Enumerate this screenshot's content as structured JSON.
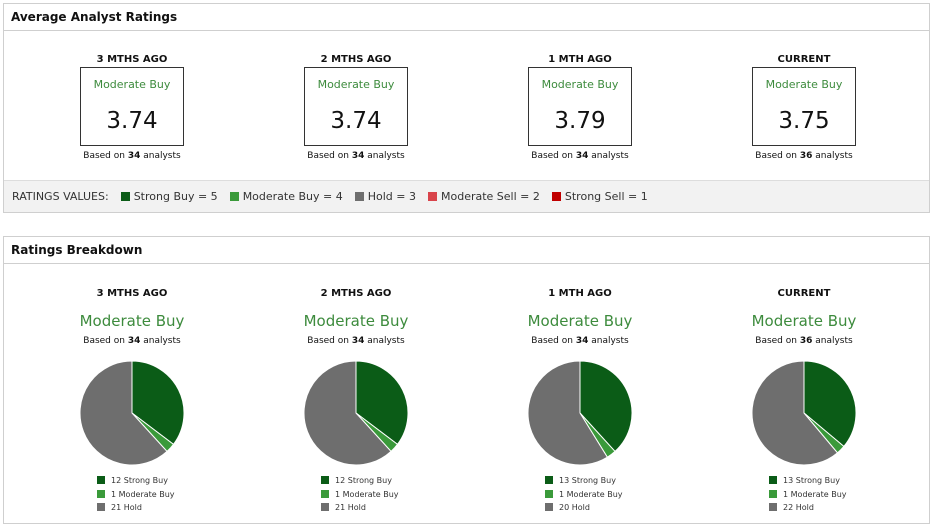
{
  "ratings_panel": {
    "title": "Average Analyst Ratings",
    "periods": [
      {
        "label": "3 MTHS AGO",
        "rating": "Moderate Buy",
        "score": 3.74,
        "based_prefix": "Based on",
        "analysts": 34,
        "based_suffix": "analysts"
      },
      {
        "label": "2 MTHS AGO",
        "rating": "Moderate Buy",
        "score": 3.74,
        "based_prefix": "Based on",
        "analysts": 34,
        "based_suffix": "analysts"
      },
      {
        "label": "1 MTH AGO",
        "rating": "Moderate Buy",
        "score": 3.79,
        "based_prefix": "Based on",
        "analysts": 34,
        "based_suffix": "analysts"
      },
      {
        "label": "CURRENT",
        "rating": "Moderate Buy",
        "score": 3.75,
        "based_prefix": "Based on",
        "analysts": 36,
        "based_suffix": "analysts"
      }
    ],
    "legend_label": "RATINGS VALUES:",
    "legend": [
      {
        "text": "Strong Buy = 5",
        "color": "#0b5c17"
      },
      {
        "text": "Moderate Buy = 4",
        "color": "#3a9a3a"
      },
      {
        "text": "Hold = 3",
        "color": "#6e6e6e"
      },
      {
        "text": "Moderate Sell = 2",
        "color": "#d9444b"
      },
      {
        "text": "Strong Sell = 1",
        "color": "#c00000"
      }
    ]
  },
  "breakdown_title": "Ratings Breakdown",
  "chart_data": [
    {
      "type": "pie",
      "title": "3 MTHS AGO",
      "subtitle": "Moderate Buy",
      "based_prefix": "Based on",
      "analysts": 34,
      "based_suffix": "analysts",
      "categories": [
        "Strong Buy",
        "Moderate Buy",
        "Hold"
      ],
      "values": [
        12,
        1,
        21
      ],
      "colors": [
        "#0b5c17",
        "#3a9a3a",
        "#6e6e6e"
      ]
    },
    {
      "type": "pie",
      "title": "2 MTHS AGO",
      "subtitle": "Moderate Buy",
      "based_prefix": "Based on",
      "analysts": 34,
      "based_suffix": "analysts",
      "categories": [
        "Strong Buy",
        "Moderate Buy",
        "Hold"
      ],
      "values": [
        12,
        1,
        21
      ],
      "colors": [
        "#0b5c17",
        "#3a9a3a",
        "#6e6e6e"
      ]
    },
    {
      "type": "pie",
      "title": "1 MTH AGO",
      "subtitle": "Moderate Buy",
      "based_prefix": "Based on",
      "analysts": 34,
      "based_suffix": "analysts",
      "categories": [
        "Strong Buy",
        "Moderate Buy",
        "Hold"
      ],
      "values": [
        13,
        1,
        20
      ],
      "colors": [
        "#0b5c17",
        "#3a9a3a",
        "#6e6e6e"
      ]
    },
    {
      "type": "pie",
      "title": "CURRENT",
      "subtitle": "Moderate Buy",
      "based_prefix": "Based on",
      "analysts": 36,
      "based_suffix": "analysts",
      "categories": [
        "Strong Buy",
        "Moderate Buy",
        "Hold"
      ],
      "values": [
        13,
        1,
        22
      ],
      "colors": [
        "#0b5c17",
        "#3a9a3a",
        "#6e6e6e"
      ]
    }
  ]
}
